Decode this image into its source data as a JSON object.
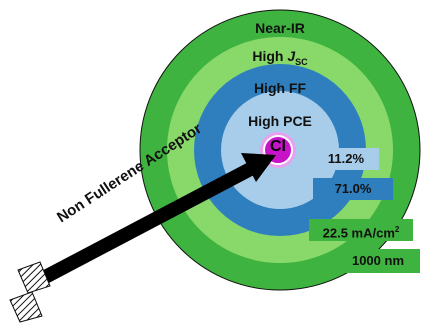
{
  "rings": {
    "outer": "Near-IR",
    "jsc_prefix": "High ",
    "jsc_var": "J",
    "jsc_sub": "SC",
    "ff": "High FF",
    "pce": "High PCE"
  },
  "center_label": "Cl",
  "arrow_label": "Non Fullerene Acceptor",
  "stats": {
    "pce_value": "11.2%",
    "ff_value": "71.0%",
    "jsc_value": "22.5 mA/cm",
    "jsc_sup": "2",
    "wavelength": "1000 nm"
  },
  "colors": {
    "outer_ring": "#3fb33f",
    "second_ring": "#88d96a",
    "third_ring": "#2f7fbe",
    "inner_ring": "#a8cdea",
    "center": "#c814c8",
    "arrow": "#000000"
  }
}
